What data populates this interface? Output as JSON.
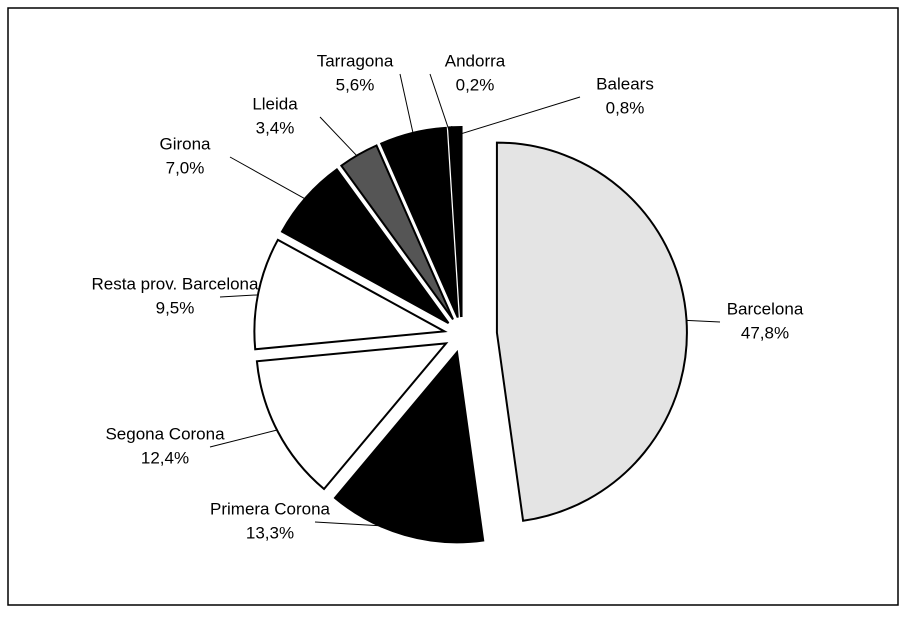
{
  "chart_data": {
    "type": "pie",
    "categories": [
      "Barcelona",
      "Primera Corona",
      "Segona Corona",
      "Resta prov. Barcelona",
      "Girona",
      "Lleida",
      "Tarragona",
      "Andorra",
      "Balears"
    ],
    "values": [
      47.8,
      13.3,
      12.4,
      9.5,
      7.0,
      3.4,
      5.6,
      0.2,
      0.8
    ],
    "value_labels": [
      "47,8%",
      "13,3%",
      "12,4%",
      "9,5%",
      "7,0%",
      "3,4%",
      "5,6%",
      "0,2%",
      "0,8%"
    ],
    "colors": [
      "#e4e4e4",
      "#000000",
      "#ffffff",
      "#ffffff",
      "#000000",
      "#555555",
      "#000000",
      "#000000",
      "#000000"
    ]
  }
}
